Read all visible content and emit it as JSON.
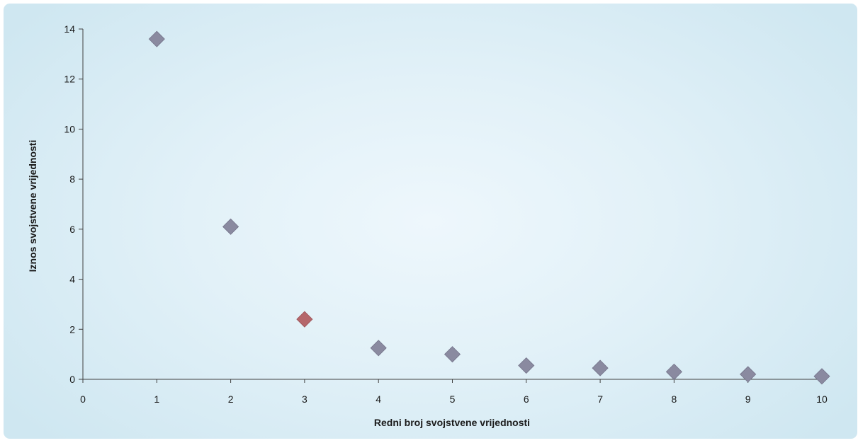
{
  "chart_data": {
    "type": "scatter",
    "title": "",
    "xlabel": "Redni broj svojstvene vrijednosti",
    "ylabel": "Iznos svojstvene vrijednosti",
    "xlim": [
      0,
      10
    ],
    "ylim": [
      0,
      14
    ],
    "x_ticks": [
      0,
      1,
      2,
      3,
      4,
      5,
      6,
      7,
      8,
      9,
      10
    ],
    "y_ticks": [
      0,
      2,
      4,
      6,
      8,
      10,
      12,
      14
    ],
    "grid": false,
    "legend": "none",
    "marker": "diamond",
    "colors": {
      "default": "#8a8aa0",
      "highlight": "#b5676b",
      "axis": "#404040"
    },
    "series": [
      {
        "x": [
          1,
          2,
          3,
          4,
          5,
          6,
          7,
          8,
          9,
          10
        ],
        "y": [
          13.6,
          6.1,
          2.4,
          1.25,
          1.0,
          0.55,
          0.45,
          0.3,
          0.2,
          0.12
        ],
        "highlight_index": 2
      }
    ]
  }
}
